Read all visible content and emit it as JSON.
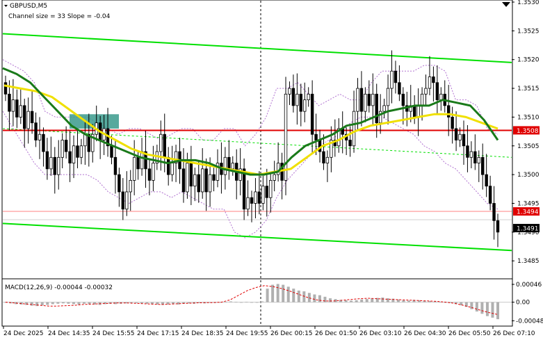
{
  "header": {
    "symbol": "GBPUSD,M5",
    "channel": "Channel size = 33 Slope = -0.04"
  },
  "macd_header": {
    "label": "MACD(12,26,9) -0.00044 -0.00032"
  },
  "colors": {
    "candle": "#000000",
    "ma_green": "#1a7a1a",
    "ma_yellow": "#f0e000",
    "channel": "#00e000",
    "resistance": "#e00000",
    "support": "#ff8080",
    "bollinger": "#b070d0",
    "macd_signal": "#e00000",
    "macd_hist": "#b0b0b0",
    "tag_red": "#e00000",
    "tag_black": "#000000"
  },
  "chart_data": [
    {
      "type": "candlestick",
      "title": "GBPUSD,M5",
      "subtitle": "Channel size = 33 Slope = -0.04",
      "ylim": [
        1.3482,
        1.353
      ],
      "y_ticks": [
        "1.3530",
        "1.3525",
        "1.3520",
        "1.3515",
        "1.3510",
        "1.3505",
        "1.3500",
        "1.3495",
        "1.3490",
        "1.3485"
      ],
      "x_ticks": [
        "24 Dec 2025",
        "24 Dec 14:35",
        "24 Dec 15:55",
        "24 Dec 17:15",
        "24 Dec 18:35",
        "24 Dec 19:55",
        "26 Dec 00:15",
        "26 Dec 01:50",
        "26 Dec 03:10",
        "26 Dec 04:30",
        "26 Dec 05:50",
        "26 Dec 07:10"
      ],
      "price_tags": [
        {
          "label": "1.3508",
          "value": 1.35077,
          "style": "red"
        },
        {
          "label": "1.3494",
          "value": 1.34936,
          "style": "red"
        },
        {
          "label": "1.3491",
          "value": 1.34907,
          "style": "black"
        }
      ],
      "levels": {
        "resistance": 1.35077,
        "support": 1.34936
      },
      "channel": {
        "upper": [
          1.35245,
          1.35195
        ],
        "lower": [
          1.34915,
          1.34868
        ],
        "mid": [
          1.3508,
          1.3503
        ]
      },
      "closes": [
        1.3514,
        1.3511,
        1.3513,
        1.351,
        1.3512,
        1.3508,
        1.3511,
        1.3509,
        1.3506,
        1.3507,
        1.3504,
        1.3501,
        1.3503,
        1.35,
        1.3503,
        1.3506,
        1.3504,
        1.3502,
        1.3505,
        1.3503,
        1.3505,
        1.3507,
        1.3504,
        1.3507,
        1.3509,
        1.3506,
        1.3508,
        1.3505,
        1.3503,
        1.35,
        1.3497,
        1.3494,
        1.3497,
        1.3499,
        1.3503,
        1.3501,
        1.3504,
        1.3501,
        1.3499,
        1.3502,
        1.3504,
        1.3507,
        1.3503,
        1.35,
        1.3502,
        1.3504,
        1.3501,
        1.3497,
        1.3502,
        1.3498,
        1.35,
        1.3497,
        1.3501,
        1.3497,
        1.35,
        1.3499,
        1.3502,
        1.35,
        1.3503,
        1.3501,
        1.3502,
        1.3499,
        1.3501,
        1.3494,
        1.3496,
        1.3495,
        1.3497,
        1.3495,
        1.3498,
        1.3496,
        1.3499,
        1.35,
        1.3502,
        1.3499,
        1.3514,
        1.3515,
        1.3512,
        1.3514,
        1.3511,
        1.3513,
        1.3514,
        1.3507,
        1.3506,
        1.3504,
        1.3502,
        1.3503,
        1.3506,
        1.3505,
        1.3508,
        1.3507,
        1.3506,
        1.3505,
        1.3511,
        1.3515,
        1.3511,
        1.3514,
        1.3512,
        1.3514,
        1.3509,
        1.3511,
        1.3512,
        1.3515,
        1.3518,
        1.3516,
        1.3514,
        1.3512,
        1.3511,
        1.3512,
        1.351,
        1.3512,
        1.3514,
        1.3515,
        1.3517,
        1.3516,
        1.3513,
        1.3514,
        1.3512,
        1.351,
        1.3508,
        1.3506,
        1.3507,
        1.3505,
        1.3503,
        1.3504,
        1.3502,
        1.3503,
        1.35,
        1.3498,
        1.3495,
        1.3492,
        1.349
      ],
      "bollinger": {
        "upper": [
          1.352,
          1.3519,
          1.3518,
          1.3516,
          1.3511,
          1.351,
          1.351,
          1.351,
          1.351,
          1.3509,
          1.3508,
          1.3507,
          1.3508,
          1.3508,
          1.3507,
          1.3506,
          1.3507,
          1.3508,
          1.3508,
          1.3506,
          1.3506,
          1.3508,
          1.3508,
          1.3505,
          1.3507,
          1.351,
          1.3515,
          1.3515,
          1.3516,
          1.3514,
          1.3512,
          1.3513,
          1.3514,
          1.3513,
          1.3513,
          1.3516,
          1.3518,
          1.3518,
          1.3518,
          1.3518,
          1.3519,
          1.3519,
          1.3518,
          1.3513,
          1.3513,
          1.3512,
          1.3508,
          1.3507
        ],
        "lower": [
          1.3511,
          1.3508,
          1.3505,
          1.3502,
          1.35,
          1.35,
          1.35,
          1.35,
          1.35,
          1.3499,
          1.3497,
          1.3496,
          1.3495,
          1.3496,
          1.3497,
          1.3497,
          1.3496,
          1.3497,
          1.3496,
          1.3495,
          1.3494,
          1.3494,
          1.349,
          1.3489,
          1.349,
          1.3492,
          1.3496,
          1.3499,
          1.3501,
          1.3503,
          1.3505,
          1.3506,
          1.3507,
          1.3509,
          1.351,
          1.351,
          1.351,
          1.3509,
          1.3508,
          1.3507,
          1.3505,
          1.3504,
          1.3502,
          1.3501,
          1.3499,
          1.3497,
          1.3495,
          1.3494
        ]
      },
      "ma_green": [
        1.35185,
        1.35175,
        1.3516,
        1.35135,
        1.3511,
        1.35085,
        1.3507,
        1.3506,
        1.3505,
        1.3504,
        1.3503,
        1.35025,
        1.3502,
        1.35025,
        1.35025,
        1.3502,
        1.3501,
        1.35005,
        1.35,
        1.35,
        1.35005,
        1.3503,
        1.3505,
        1.3506,
        1.3507,
        1.35085,
        1.3509,
        1.351,
        1.3511,
        1.35115,
        1.3512,
        1.3512,
        1.3513,
        1.35125,
        1.3512,
        1.35095,
        1.3506
      ],
      "ma_yellow": [
        1.35155,
        1.3515,
        1.35145,
        1.35135,
        1.35115,
        1.35095,
        1.35075,
        1.3506,
        1.35045,
        1.35035,
        1.3503,
        1.35025,
        1.3502,
        1.35015,
        1.3501,
        1.35005,
        1.35,
        1.35005,
        1.3501,
        1.3503,
        1.3505,
        1.3506,
        1.35075,
        1.35085,
        1.3509,
        1.35095,
        1.351,
        1.35105,
        1.35105,
        1.351,
        1.3509,
        1.3508
      ],
      "marker_box": {
        "price_top": 1.35105,
        "price_bottom": 1.3508
      }
    },
    {
      "type": "bar",
      "title": "MACD(12,26,9) -0.00044 -0.00032",
      "ylim": [
        -0.0006,
        0.00055
      ],
      "y_ticks": [
        "0.00046",
        "0.00",
        "-0.00048"
      ],
      "histogram": [
        0.0,
        -3e-05,
        -5e-05,
        -6e-05,
        -7e-05,
        -9e-05,
        -0.0001,
        -8e-05,
        -7e-05,
        -5e-05,
        -4e-05,
        -3e-05,
        -4e-05,
        -5e-05,
        -6e-05,
        -4e-05,
        -5e-05,
        -6e-05,
        -7e-05,
        -5e-05,
        -4e-05,
        -5e-05,
        -4e-05,
        -3e-05,
        -2e-05,
        -2e-05,
        -3e-05,
        -4e-05,
        -5e-05,
        -6e-05,
        -7e-05,
        -6e-05,
        -5e-05,
        -6e-05,
        -4e-05,
        -3e-05,
        -4e-05,
        -2e-05,
        -3e-05,
        -1e-05,
        -2e-05,
        0.0,
        1e-05,
        2e-05,
        1e-05,
        0.0,
        1e-05,
        0.0,
        -1e-05,
        2e-05,
        0.00035,
        0.00045,
        0.00047,
        0.00045,
        0.0004,
        0.00035,
        0.0003,
        0.00028,
        0.00024,
        0.0002,
        0.00018,
        0.00014,
        0.0001,
        8e-05,
        6e-05,
        5e-05,
        4e-05,
        5e-05,
        7e-05,
        8e-05,
        0.0001,
        0.00011,
        0.00012,
        0.0001,
        9e-05,
        7e-05,
        5e-05,
        4e-05,
        6e-05,
        5e-05,
        4e-05,
        3e-05,
        2e-05,
        1e-05,
        0.0,
        -2e-05,
        -5e-05,
        -8e-05,
        -0.00012,
        -0.00018,
        -0.00024,
        -0.0003,
        -0.00036,
        -0.0004,
        -0.00044
      ],
      "signal": [
        0.0,
        -2e-05,
        -4e-05,
        -6e-05,
        -8e-05,
        -0.0001,
        -0.0001,
        -9e-05,
        -8e-05,
        -6e-05,
        -5e-05,
        -4e-05,
        -3e-05,
        -2e-05,
        -2e-05,
        -3e-05,
        -4e-05,
        -5e-05,
        -6e-05,
        -5e-05,
        -4e-05,
        -3e-05,
        -2e-05,
        -1e-05,
        -1e-05,
        0.0,
        6e-05,
        0.00018,
        0.0003,
        0.00038,
        0.00043,
        0.0004,
        0.00035,
        0.00028,
        0.0002,
        0.00012,
        6e-05,
        3e-05,
        3e-05,
        5e-05,
        7e-05,
        9e-05,
        0.0001,
        9e-05,
        8e-05,
        7e-05,
        6e-05,
        5e-05,
        4e-05,
        3e-05,
        2e-05,
        0.0,
        -3e-05,
        -8e-05,
        -0.00014,
        -0.00021,
        -0.00027,
        -0.00032
      ]
    }
  ]
}
